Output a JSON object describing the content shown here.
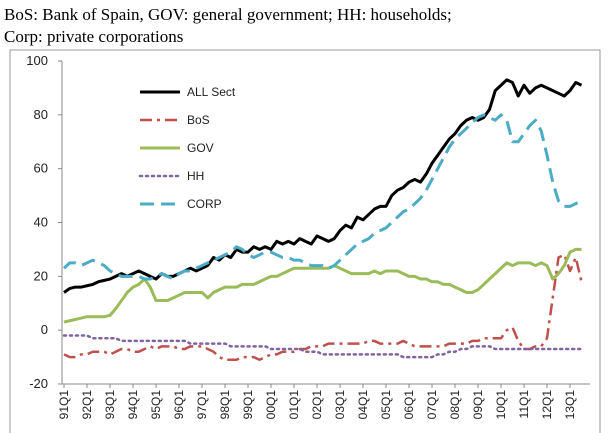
{
  "chart_data": {
    "type": "line",
    "caption": [
      "BoS: Bank of Spain, GOV: general government; HH: households;",
      "Corp: private corporations"
    ],
    "categories": [
      "91Q1",
      null,
      null,
      null,
      "92Q1",
      null,
      null,
      null,
      "93Q1",
      null,
      null,
      null,
      "94Q1",
      null,
      null,
      null,
      "95Q1",
      null,
      null,
      null,
      "96Q1",
      null,
      null,
      null,
      "97Q1",
      null,
      null,
      null,
      "98Q1",
      null,
      null,
      null,
      "99Q1",
      null,
      null,
      null,
      "00Q1",
      null,
      null,
      null,
      "01Q1",
      null,
      null,
      null,
      "02Q1",
      null,
      null,
      null,
      "03Q1",
      null,
      null,
      null,
      "04Q1",
      null,
      null,
      null,
      "05Q1",
      null,
      null,
      null,
      "06Q1",
      null,
      null,
      null,
      "07Q1",
      null,
      null,
      null,
      "08Q1",
      null,
      null,
      null,
      "09Q1",
      null,
      null,
      null,
      "10Q1",
      null,
      null,
      null,
      "11Q1",
      null,
      null,
      null,
      "12Q1",
      null,
      null,
      null,
      "13Q1",
      null,
      null
    ],
    "series": [
      {
        "name": "ALL Sect",
        "color": "#000000",
        "dash": "solid",
        "width": 3,
        "values": [
          14,
          15.5,
          16,
          16,
          16.5,
          17,
          18,
          18.5,
          19,
          20,
          21,
          20,
          21,
          22,
          21,
          20,
          19,
          21,
          20,
          20,
          21,
          22,
          23,
          22,
          23,
          24,
          27,
          26,
          28,
          27,
          30,
          29,
          29,
          31,
          30,
          31,
          30,
          33,
          32,
          33,
          32,
          34,
          33,
          32,
          35,
          34,
          33,
          34,
          37,
          39,
          38,
          42,
          41,
          43,
          45,
          46,
          46,
          50,
          52,
          53,
          55,
          56,
          55,
          58,
          62,
          65,
          68,
          71,
          73,
          76,
          78,
          79,
          78,
          79,
          82,
          89,
          91,
          93,
          92,
          87,
          91,
          88,
          90,
          91,
          90,
          89,
          88,
          87,
          89,
          92,
          91
        ]
      },
      {
        "name": "BoS",
        "color": "#c0504d",
        "dash": "dashdot",
        "width": 2.5,
        "values": [
          -9,
          -10,
          -10,
          -9,
          -9,
          -8,
          -8,
          -8,
          -9,
          -8,
          -7,
          -7,
          -8,
          -8,
          -7,
          -6,
          -7,
          -6,
          -6,
          -6,
          -7,
          -7,
          -6,
          -6,
          -6,
          -7,
          -8,
          -10,
          -11,
          -11,
          -11,
          -10,
          -10,
          -10,
          -11,
          -10,
          -9,
          -9,
          -8,
          -8,
          -8,
          -7,
          -7,
          -6,
          -6,
          -6,
          -5,
          -5,
          -5,
          -5,
          -5,
          -5,
          -5,
          -4,
          -4,
          -5,
          -5,
          -5,
          -5,
          -4,
          -5,
          -6,
          -6,
          -6,
          -6,
          -6,
          -6,
          -5,
          -5,
          -5,
          -5,
          -4,
          -4,
          -3,
          -3,
          -3,
          -3,
          0,
          1,
          -4,
          -7,
          -7,
          -6,
          -6,
          -3,
          12,
          27,
          28,
          22,
          27,
          18
        ]
      },
      {
        "name": "GOV",
        "color": "#9bbb59",
        "dash": "solid",
        "width": 3,
        "values": [
          3,
          3.5,
          4,
          4.5,
          5,
          5,
          5,
          5,
          5.5,
          8,
          11,
          14,
          16,
          17,
          19,
          16,
          11,
          11,
          11,
          12,
          13,
          14,
          14,
          14,
          14,
          12,
          14,
          15,
          16,
          16,
          16,
          17,
          17,
          17,
          18,
          19,
          20,
          20,
          21,
          22,
          23,
          23,
          23,
          23,
          23,
          23,
          23,
          24,
          23,
          22,
          21,
          21,
          21,
          21,
          22,
          21,
          22,
          22,
          22,
          21,
          20,
          20,
          19,
          19,
          18,
          18,
          17,
          17,
          16,
          15,
          14,
          14,
          15,
          17,
          19,
          21,
          23,
          25,
          24,
          25,
          25,
          25,
          24,
          25,
          24,
          19,
          21,
          24,
          29,
          30,
          30
        ]
      },
      {
        "name": "HH",
        "color": "#8064a2",
        "dash": "dot",
        "width": 2.5,
        "values": [
          -2,
          -2,
          -2,
          -2,
          -2,
          -3,
          -3,
          -3,
          -3,
          -3,
          -4,
          -4,
          -4,
          -4,
          -4,
          -4,
          -4,
          -4,
          -4,
          -4,
          -4,
          -4,
          -5,
          -5,
          -5,
          -5,
          -5,
          -5,
          -5,
          -6,
          -6,
          -6,
          -6,
          -6,
          -6,
          -6,
          -7,
          -7,
          -7,
          -7,
          -7,
          -7,
          -8,
          -8,
          -8,
          -9,
          -9,
          -9,
          -9,
          -9,
          -9,
          -9,
          -9,
          -9,
          -9,
          -9,
          -9,
          -9,
          -9,
          -10,
          -10,
          -10,
          -10,
          -10,
          -10,
          -9,
          -9,
          -8,
          -8,
          -7,
          -7,
          -6,
          -6,
          -6,
          -6,
          -7,
          -7,
          -7,
          -7,
          -7,
          -7,
          -7,
          -7,
          -7,
          -7,
          -7,
          -7,
          -7,
          -7,
          -7,
          -7
        ]
      },
      {
        "name": "CORP",
        "color": "#4bacc6",
        "dash": "dash",
        "width": 3,
        "values": [
          23,
          25,
          25,
          24,
          25,
          26,
          25,
          24,
          22,
          21,
          20,
          20,
          20,
          20,
          19,
          19,
          20,
          21,
          20,
          19,
          21,
          22,
          22,
          23,
          24,
          25,
          26,
          27,
          28,
          29,
          31,
          30,
          28,
          27,
          28,
          29,
          29,
          28,
          27,
          27,
          26,
          26,
          25,
          24,
          24,
          24,
          23,
          24,
          26,
          28,
          30,
          32,
          33,
          34,
          36,
          37,
          38,
          40,
          42,
          44,
          45,
          47,
          49,
          52,
          56,
          60,
          64,
          68,
          71,
          73,
          75,
          77,
          79,
          80,
          79,
          78,
          80,
          78,
          70,
          70,
          73,
          76,
          78,
          74,
          65,
          55,
          48,
          46,
          46,
          47,
          48
        ]
      }
    ],
    "ylim": [
      -20,
      100
    ],
    "yticks": [
      -20,
      0,
      20,
      40,
      60,
      80,
      100
    ],
    "grid": false,
    "legend": "upper left"
  }
}
